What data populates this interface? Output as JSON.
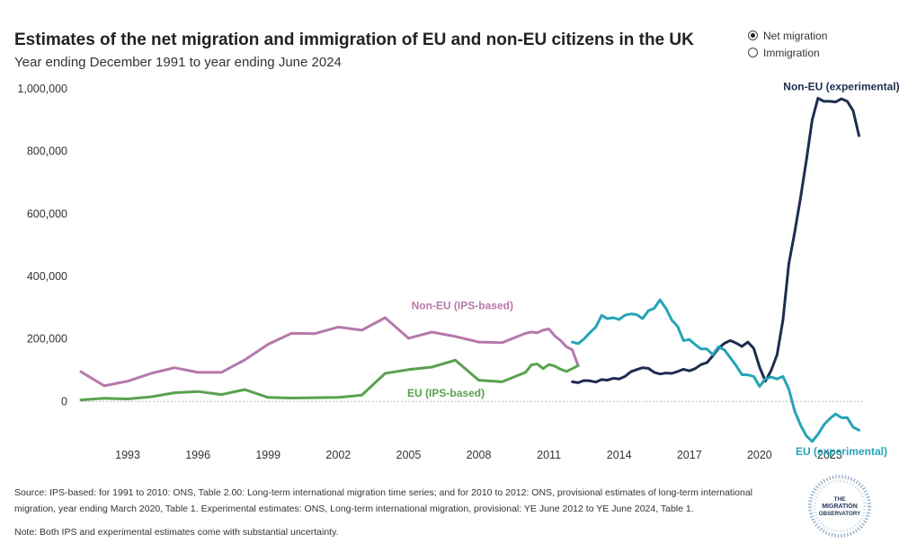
{
  "header": {
    "title": "Estimates of the net migration and immigration of EU and non-EU citizens in the UK",
    "subtitle": "Year ending December 1991 to year ending June 2024"
  },
  "toggle": {
    "options": [
      {
        "label": "Net migration",
        "checked": true
      },
      {
        "label": "Immigration",
        "checked": false
      }
    ]
  },
  "footer": {
    "source": "Source: IPS-based: for 1991 to 2010: ONS, Table 2.00: Long-term international migration time series; and for 2010 to 2012: ONS, provisional estimates of long-term international migration, year ending March 2020, Table 1. Experimental estimates: ONS, Long-term international migration, provisional: YE June 2012 to YE June 2024, Table 1.",
    "note": "Note: Both IPS and experimental estimates come with substantial uncertainty.",
    "logo_text": [
      "THE",
      "MIGRATION",
      "OBSERVATORY"
    ]
  },
  "chart_data": {
    "type": "line",
    "title": "Estimates of the net migration and immigration of EU and non-EU citizens in the UK",
    "xlabel": "",
    "ylabel": "",
    "xlim": [
      1991,
      2024.5
    ],
    "ylim": [
      -180000,
      1000000
    ],
    "y_ticks": [
      0,
      200000,
      400000,
      600000,
      800000,
      1000000
    ],
    "y_tick_labels": [
      "0",
      "200,000",
      "400,000",
      "600,000",
      "800,000",
      "1,000,000"
    ],
    "x_ticks": [
      1993,
      1996,
      1999,
      2002,
      2005,
      2008,
      2011,
      2014,
      2017,
      2020,
      2023
    ],
    "x_tick_labels": [
      "1993",
      "1996",
      "1999",
      "2002",
      "2005",
      "2008",
      "2011",
      "2014",
      "2017",
      "2020",
      "2023"
    ],
    "series": [
      {
        "name": "Non-EU (IPS-based)",
        "color": "#b678aa",
        "x": [
          1991,
          1992,
          1993,
          1994,
          1995,
          1996,
          1997,
          1998,
          1999,
          2000,
          2001,
          2002,
          2003,
          2004,
          2005,
          2006,
          2007,
          2008,
          2009,
          2010,
          2010.25,
          2010.5,
          2010.75,
          2011,
          2011.25,
          2011.5,
          2011.75,
          2012,
          2012.25
        ],
        "y": [
          95000,
          50000,
          65000,
          90000,
          108000,
          93000,
          93000,
          133000,
          183000,
          218000,
          217000,
          238000,
          228000,
          268000,
          202000,
          222000,
          208000,
          190000,
          188000,
          218000,
          222000,
          220000,
          228000,
          232000,
          210000,
          195000,
          175000,
          165000,
          115000
        ]
      },
      {
        "name": "EU (IPS-based)",
        "color": "#59a14f",
        "x": [
          1991,
          1992,
          1993,
          1994,
          1995,
          1996,
          1997,
          1998,
          1999,
          2000,
          2001,
          2002,
          2003,
          2004,
          2005,
          2006,
          2007,
          2008,
          2009,
          2010,
          2010.25,
          2010.5,
          2010.75,
          2011,
          2011.25,
          2011.5,
          2011.75,
          2012,
          2012.25
        ],
        "y": [
          5000,
          10000,
          8000,
          15000,
          28000,
          32000,
          22000,
          38000,
          13000,
          11000,
          12000,
          13000,
          20000,
          90000,
          102000,
          110000,
          132000,
          68000,
          63000,
          93000,
          117000,
          120000,
          105000,
          118000,
          113000,
          103000,
          96000,
          105000,
          115000
        ]
      },
      {
        "name": "Non-EU (experimental)",
        "color": "#1e2d4f",
        "x": [
          2012,
          2012.25,
          2012.5,
          2012.75,
          2013,
          2013.25,
          2013.5,
          2013.75,
          2014,
          2014.25,
          2014.5,
          2014.75,
          2015,
          2015.25,
          2015.5,
          2015.75,
          2016,
          2016.25,
          2016.5,
          2016.75,
          2017,
          2017.25,
          2017.5,
          2017.75,
          2018,
          2018.25,
          2018.5,
          2018.75,
          2019,
          2019.25,
          2019.5,
          2019.75,
          2020,
          2020.25,
          2020.5,
          2020.75,
          2021,
          2021.25,
          2021.5,
          2021.75,
          2022,
          2022.25,
          2022.5,
          2022.75,
          2023,
          2023.25,
          2023.5,
          2023.75,
          2024,
          2024.25
        ],
        "y": [
          63000,
          60000,
          67000,
          66000,
          62000,
          70000,
          68000,
          74000,
          72000,
          80000,
          95000,
          102000,
          108000,
          106000,
          93000,
          88000,
          91000,
          90000,
          96000,
          103000,
          98000,
          105000,
          118000,
          124000,
          146000,
          170000,
          186000,
          195000,
          187000,
          176000,
          190000,
          170000,
          110000,
          65000,
          100000,
          150000,
          260000,
          440000,
          540000,
          650000,
          770000,
          900000,
          970000,
          960000,
          960000,
          958000,
          968000,
          960000,
          930000,
          850000
        ]
      },
      {
        "name": "EU (experimental)",
        "color": "#26a3b8",
        "x": [
          2012,
          2012.25,
          2012.5,
          2012.75,
          2013,
          2013.25,
          2013.5,
          2013.75,
          2014,
          2014.25,
          2014.5,
          2014.75,
          2015,
          2015.25,
          2015.5,
          2015.75,
          2016,
          2016.25,
          2016.5,
          2016.75,
          2017,
          2017.25,
          2017.5,
          2017.75,
          2018,
          2018.25,
          2018.5,
          2018.75,
          2019,
          2019.25,
          2019.5,
          2019.75,
          2020,
          2020.25,
          2020.5,
          2020.75,
          2021,
          2021.25,
          2021.5,
          2021.75,
          2022,
          2022.25,
          2022.5,
          2022.75,
          2023,
          2023.25,
          2023.5,
          2023.75,
          2024,
          2024.25
        ],
        "y": [
          190000,
          185000,
          200000,
          220000,
          238000,
          275000,
          265000,
          268000,
          262000,
          276000,
          280000,
          278000,
          265000,
          290000,
          298000,
          325000,
          298000,
          260000,
          240000,
          195000,
          198000,
          182000,
          168000,
          168000,
          150000,
          175000,
          165000,
          140000,
          115000,
          86000,
          85000,
          80000,
          48000,
          72000,
          78000,
          72000,
          80000,
          40000,
          -30000,
          -75000,
          -110000,
          -128000,
          -105000,
          -75000,
          -55000,
          -40000,
          -52000,
          -52000,
          -82000,
          -92000
        ]
      }
    ],
    "annotations": [
      {
        "text": "Non-EU (experimental)",
        "x": 2023.5,
        "y": 995000,
        "color": "#1e2d4f"
      },
      {
        "text": "Non-EU (IPS-based)",
        "x": 2007.3,
        "y": 295000,
        "color": "#b678aa"
      },
      {
        "text": "EU (IPS-based)",
        "x": 2006.6,
        "y": 15000,
        "color": "#59a14f"
      },
      {
        "text": "EU (experimental)",
        "x": 2023.5,
        "y": -172000,
        "color": "#26a3b8"
      }
    ]
  }
}
